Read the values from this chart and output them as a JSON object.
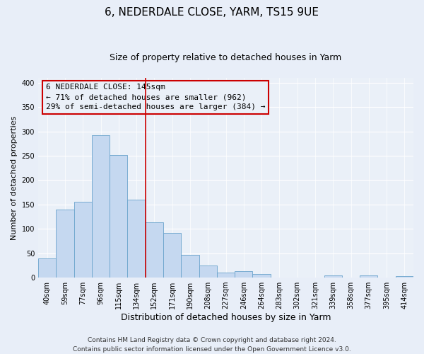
{
  "title": "6, NEDERDALE CLOSE, YARM, TS15 9UE",
  "subtitle": "Size of property relative to detached houses in Yarm",
  "xlabel": "Distribution of detached houses by size in Yarm",
  "ylabel": "Number of detached properties",
  "bar_labels": [
    "40sqm",
    "59sqm",
    "77sqm",
    "96sqm",
    "115sqm",
    "134sqm",
    "152sqm",
    "171sqm",
    "190sqm",
    "208sqm",
    "227sqm",
    "246sqm",
    "264sqm",
    "283sqm",
    "302sqm",
    "321sqm",
    "339sqm",
    "358sqm",
    "377sqm",
    "395sqm",
    "414sqm"
  ],
  "bar_values": [
    40,
    140,
    155,
    292,
    252,
    160,
    113,
    92,
    46,
    25,
    10,
    13,
    8,
    0,
    0,
    0,
    5,
    0,
    5,
    0,
    3
  ],
  "bar_color": "#c5d8f0",
  "bar_edge_color": "#6aa3cc",
  "vline_color": "#cc0000",
  "annotation_title": "6 NEDERDALE CLOSE: 145sqm",
  "annotation_line1": "← 71% of detached houses are smaller (962)",
  "annotation_line2": "29% of semi-detached houses are larger (384) →",
  "box_edge_color": "#cc0000",
  "ylim": [
    0,
    410
  ],
  "yticks": [
    0,
    50,
    100,
    150,
    200,
    250,
    300,
    350,
    400
  ],
  "footer_line1": "Contains HM Land Registry data © Crown copyright and database right 2024.",
  "footer_line2": "Contains public sector information licensed under the Open Government Licence v3.0.",
  "background_color": "#e8eef8",
  "plot_bg_color": "#eaf0f8",
  "title_fontsize": 11,
  "subtitle_fontsize": 9,
  "xlabel_fontsize": 9,
  "ylabel_fontsize": 8,
  "tick_fontsize": 7,
  "annotation_fontsize": 8,
  "footer_fontsize": 6.5
}
